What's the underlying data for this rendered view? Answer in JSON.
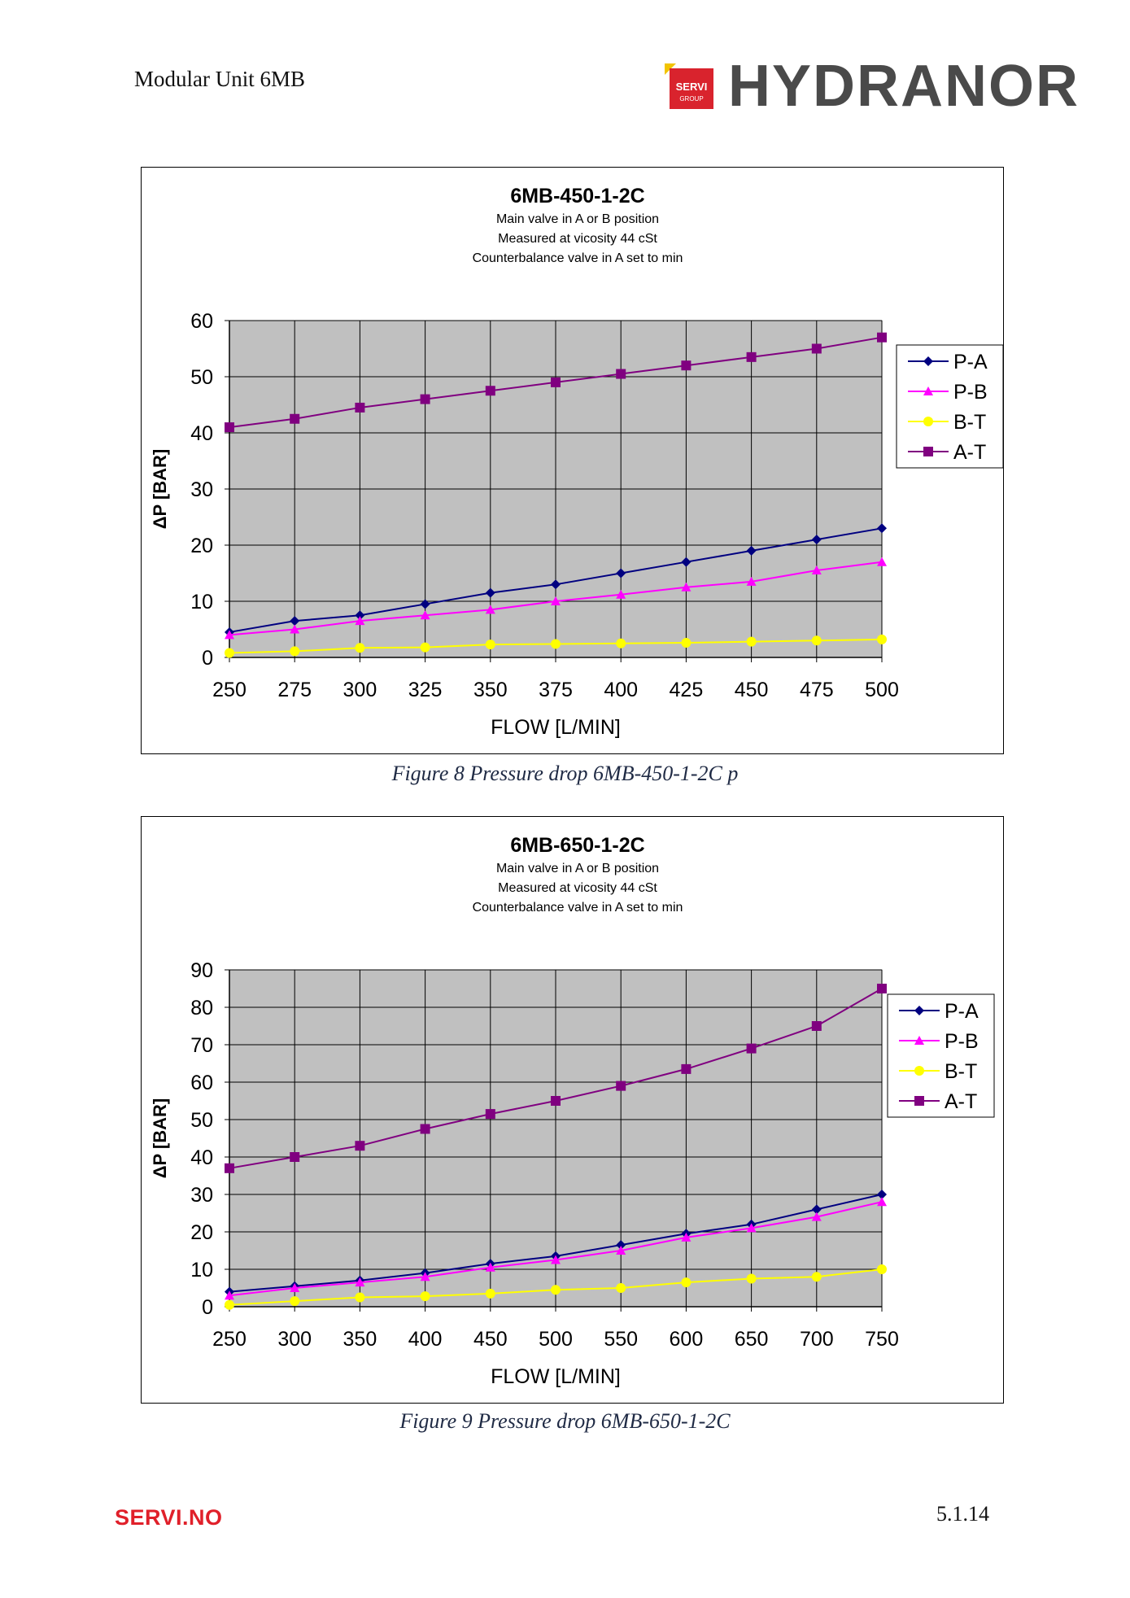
{
  "header": {
    "title": "Modular Unit 6MB",
    "logo": {
      "badge_line1": "SERVI",
      "badge_line2": "GROUP",
      "wordmark": "HYDRANOR",
      "mark_color": "#d9232d",
      "accent_color": "#f2c400"
    }
  },
  "colors": {
    "plot_background": "#c0c0c0",
    "P-A": "#000080",
    "P-B": "#ff00ff",
    "B-T": "#ffff00",
    "A-T": "#800080"
  },
  "chart_data": [
    {
      "type": "line",
      "title": "6MB-450-1-2C",
      "subtitle": [
        "Main valve in A or B position",
        "Measured at vicosity 44 cSt",
        "Counterbalance valve in A set to min"
      ],
      "xlabel": "FLOW  [L/MIN]",
      "ylabel": "ΔP [BAR]",
      "x": [
        250,
        275,
        300,
        325,
        350,
        375,
        400,
        425,
        450,
        475,
        500
      ],
      "xlim": [
        250,
        500
      ],
      "ylim": [
        0,
        60
      ],
      "yticks": [
        0,
        10,
        20,
        30,
        40,
        50,
        60
      ],
      "grid": true,
      "legend": "right",
      "series": [
        {
          "name": "P-A",
          "marker": "diamond",
          "color": "#000080",
          "values": [
            4.5,
            6.5,
            7.5,
            9.5,
            11.5,
            13,
            15,
            17,
            19,
            21,
            23
          ]
        },
        {
          "name": "P-B",
          "marker": "triangle",
          "color": "#ff00ff",
          "values": [
            4,
            5,
            6.5,
            7.5,
            8.5,
            10,
            11.2,
            12.5,
            13.5,
            15.5,
            17
          ]
        },
        {
          "name": "B-T",
          "marker": "circle",
          "color": "#ffff00",
          "values": [
            0.8,
            1.1,
            1.7,
            1.8,
            2.3,
            2.4,
            2.5,
            2.6,
            2.8,
            3,
            3.2
          ]
        },
        {
          "name": "A-T",
          "marker": "square",
          "color": "#800080",
          "values": [
            41,
            42.5,
            44.5,
            46,
            47.5,
            49,
            50.5,
            52,
            53.5,
            55,
            57
          ]
        }
      ]
    },
    {
      "type": "line",
      "title": "6MB-650-1-2C",
      "subtitle": [
        "Main valve in A or B position",
        "Measured at vicosity 44 cSt",
        "Counterbalance valve in A set to min"
      ],
      "xlabel": "FLOW  [L/MIN]",
      "ylabel": "ΔP [BAR]",
      "x": [
        250,
        300,
        350,
        400,
        450,
        500,
        550,
        600,
        650,
        700,
        750
      ],
      "xlim": [
        250,
        750
      ],
      "ylim": [
        0,
        90
      ],
      "yticks": [
        0,
        10,
        20,
        30,
        40,
        50,
        60,
        70,
        80,
        90
      ],
      "grid": true,
      "legend": "right",
      "series": [
        {
          "name": "P-A",
          "marker": "diamond",
          "color": "#000080",
          "values": [
            4,
            5.5,
            7,
            9,
            11.5,
            13.5,
            16.5,
            19.5,
            22,
            26,
            30
          ]
        },
        {
          "name": "P-B",
          "marker": "triangle",
          "color": "#ff00ff",
          "values": [
            3,
            5,
            6.5,
            8,
            10.5,
            12.5,
            15,
            18.5,
            21,
            24,
            28
          ]
        },
        {
          "name": "B-T",
          "marker": "circle",
          "color": "#ffff00",
          "values": [
            0.5,
            1.5,
            2.5,
            2.8,
            3.5,
            4.5,
            5,
            6.5,
            7.5,
            8,
            10
          ]
        },
        {
          "name": "A-T",
          "marker": "square",
          "color": "#800080",
          "values": [
            37,
            40,
            43,
            47.5,
            51.5,
            55,
            59,
            63.5,
            69,
            75,
            85
          ]
        }
      ]
    }
  ],
  "captions": [
    "Figure 8 Pressure drop 6MB-450-1-2C p",
    "Figure 9 Pressure drop 6MB-650-1-2C"
  ],
  "footer": {
    "brand": "SERVI.NO",
    "page": "5.1.14"
  }
}
